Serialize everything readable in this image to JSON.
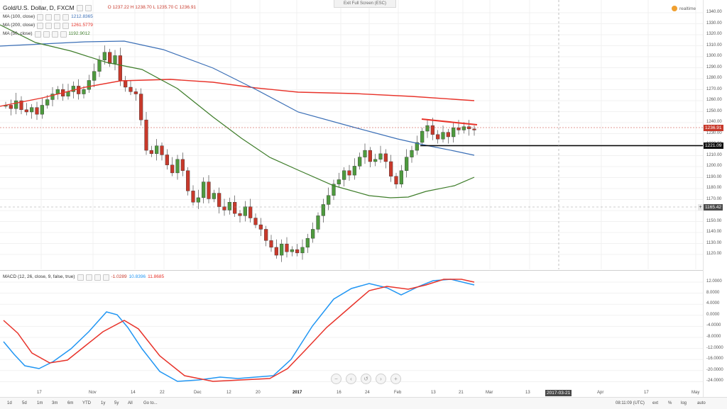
{
  "header": {
    "symbol": "Gold/U.S. Dollar, D, FXCM",
    "ohlc": "O 1237.22  H 1238.70  L 1235.70  C 1236.91",
    "exit_fullscreen": "Exit Full Screen (ESC)",
    "brand": "realtime"
  },
  "indicators": [
    {
      "name": "MA (100, close)",
      "value": "1212.8365",
      "color": "#3b6fb6"
    },
    {
      "name": "MA (200, close)",
      "value": "1261.5779",
      "color": "#e8332a"
    },
    {
      "name": "MA (50, close)",
      "value": "1192.9012",
      "color": "#3e7d2a"
    }
  ],
  "macd": {
    "name": "MACD (12, 26, close, 9, false, true)",
    "v1": "-1.0289",
    "v2": "10.8396",
    "v3": "11.8685"
  },
  "price_axis": {
    "ticks": [
      "1340.00",
      "1330.00",
      "1320.00",
      "1310.00",
      "1300.00",
      "1290.00",
      "1280.00",
      "1270.00",
      "1260.00",
      "1250.00",
      "1240.00",
      "1230.00",
      "1220.00",
      "1210.00",
      "1200.00",
      "1190.00",
      "1180.00",
      "1170.00",
      "1160.00",
      "1150.00",
      "1140.00",
      "1130.00",
      "1120.00"
    ],
    "last_price": "1236.91",
    "line_price": "1221.09",
    "cursor_price": "1165.42",
    "cursor_prefix": "+"
  },
  "macd_axis": {
    "ticks": [
      "12.0000",
      "8.0000",
      "4.0000",
      "0.0000",
      "-4.0000",
      "-8.0000",
      "-12.0000",
      "-16.0000",
      "-20.0000",
      "-24.0000"
    ]
  },
  "time_axis": {
    "labels": [
      "17",
      "Nov",
      "14",
      "22",
      "Dec",
      "12",
      "20",
      "2017",
      "16",
      "24",
      "Feb",
      "13",
      "21",
      "Mar",
      "13",
      "Apr",
      "17",
      "May"
    ],
    "cursor_date": "2017-03-21"
  },
  "bottom_bar": {
    "ranges": [
      "1d",
      "5d",
      "1m",
      "3m",
      "6m",
      "YTD",
      "1y",
      "5y",
      "All",
      "Go to..."
    ],
    "time": "08:11:09 (UTC)",
    "options": [
      "ext",
      "%",
      "log",
      "auto"
    ]
  },
  "zoom_controls": [
    "−",
    "‹",
    "↺",
    "›",
    "+"
  ],
  "colors": {
    "ma100": "#3b6fb6",
    "ma200": "#e8332a",
    "ma50": "#3e7d2a",
    "up": "#4e9a3e",
    "down": "#c8392b",
    "macd": "#2196f3",
    "signal": "#e8332a"
  }
}
